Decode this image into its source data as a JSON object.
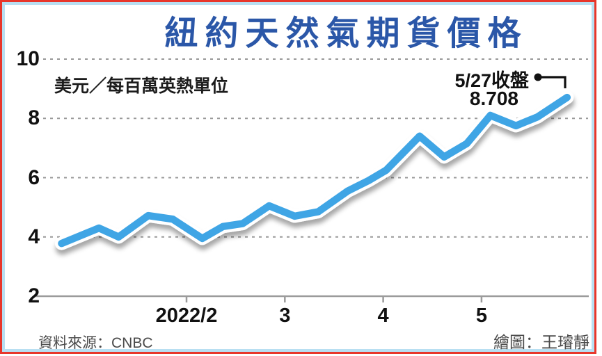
{
  "title": {
    "text": "紐約天然氣期貨價格",
    "color": "#2b57a8"
  },
  "footer": {
    "source": "資料來源：CNBC",
    "credit": "繪圖：王璿靜"
  },
  "colors": {
    "frame_outer": "#e8362b",
    "frame_inner": "#b8dff2",
    "line": "#3fa5e5",
    "grid": "#999999",
    "text": "#111111"
  },
  "chart_data": {
    "type": "line",
    "title": "紐約天然氣期貨價格",
    "unit_label": "美元／每百萬英熱單位",
    "xlabel": "",
    "ylabel": "美元／每百萬英熱單位",
    "x_axis": {
      "unit": "month (2022)",
      "ticks": [
        {
          "pos": 2,
          "label": "2022/2"
        },
        {
          "pos": 3,
          "label": "3"
        },
        {
          "pos": 4,
          "label": "4"
        },
        {
          "pos": 5,
          "label": "5"
        }
      ],
      "range": [
        0.6,
        6.0
      ]
    },
    "y_axis": {
      "ticks": [
        10,
        8,
        6,
        4,
        2
      ],
      "range": [
        2,
        10
      ],
      "grid": "dashed"
    },
    "series": [
      {
        "name": "紐約天然氣期貨價格",
        "points": [
          [
            0.73,
            3.78
          ],
          [
            1.11,
            4.3
          ],
          [
            1.31,
            4.0
          ],
          [
            1.61,
            4.72
          ],
          [
            1.86,
            4.6
          ],
          [
            2.16,
            3.95
          ],
          [
            2.37,
            4.35
          ],
          [
            2.57,
            4.45
          ],
          [
            2.84,
            5.05
          ],
          [
            3.1,
            4.7
          ],
          [
            3.34,
            4.85
          ],
          [
            3.64,
            5.55
          ],
          [
            3.85,
            5.9
          ],
          [
            4.03,
            6.25
          ],
          [
            4.37,
            7.4
          ],
          [
            4.62,
            6.7
          ],
          [
            4.85,
            7.15
          ],
          [
            5.09,
            8.1
          ],
          [
            5.35,
            7.75
          ],
          [
            5.57,
            8.05
          ],
          [
            5.87,
            8.708
          ]
        ]
      }
    ],
    "annotation": {
      "line1": "5/27收盤",
      "line2": "8.708",
      "points_to": [
        5.87,
        8.708
      ]
    },
    "line_color": "#3fa5e5",
    "legend": "none"
  }
}
